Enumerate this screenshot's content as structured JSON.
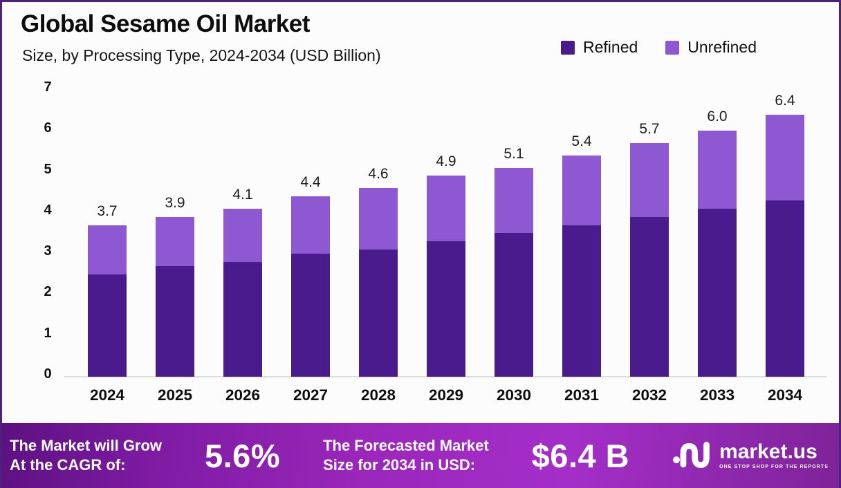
{
  "header": {
    "title": "Global Sesame Oil Market",
    "subtitle": "Size, by Processing Type, 2024-2034 (USD Billion)"
  },
  "legend": [
    {
      "label": "Refined",
      "color": "#4a1b8c"
    },
    {
      "label": "Unrefined",
      "color": "#8e58d3"
    }
  ],
  "chart_data": {
    "type": "bar",
    "stacked": true,
    "title": "Global Sesame Oil Market Size, by Processing Type, 2024-2034 (USD Billion)",
    "categories": [
      "2024",
      "2025",
      "2026",
      "2027",
      "2028",
      "2029",
      "2030",
      "2031",
      "2032",
      "2033",
      "2034"
    ],
    "series": [
      {
        "name": "Refined",
        "color": "#4a1b8c",
        "values": [
          2.5,
          2.7,
          2.8,
          3.0,
          3.1,
          3.3,
          3.5,
          3.7,
          3.9,
          4.1,
          4.3
        ]
      },
      {
        "name": "Unrefined",
        "color": "#8e58d3",
        "values": [
          1.2,
          1.2,
          1.3,
          1.4,
          1.5,
          1.6,
          1.6,
          1.7,
          1.8,
          1.9,
          2.1
        ]
      }
    ],
    "totals": [
      "3.7",
      "3.9",
      "4.1",
      "4.4",
      "4.6",
      "4.9",
      "5.1",
      "5.4",
      "5.7",
      "6.0",
      "6.4"
    ],
    "ylim": [
      0,
      7
    ],
    "yticks": [
      0,
      1,
      2,
      3,
      4,
      5,
      6,
      7
    ],
    "grid": false,
    "legend_position": "top-right"
  },
  "footer": {
    "cagr_label_line1": "The Market will Grow",
    "cagr_label_line2": "At the CAGR of:",
    "cagr_value": "5.6%",
    "forecast_label_line1": "The Forecasted Market",
    "forecast_label_line2": "Size for 2034 in USD:",
    "forecast_value": "$6.4 B",
    "brand": {
      "name": "market.us",
      "tagline": "ONE STOP SHOP FOR THE REPORTS"
    }
  },
  "colors": {
    "refined": "#4a1b8c",
    "unrefined": "#8e58d3",
    "border": "#4e2180",
    "background": "#fcfcfc",
    "axis_line": "#dcdcdc",
    "banner_gradient": [
      "#5c1180",
      "#9c27bc",
      "#7e2399"
    ]
  }
}
